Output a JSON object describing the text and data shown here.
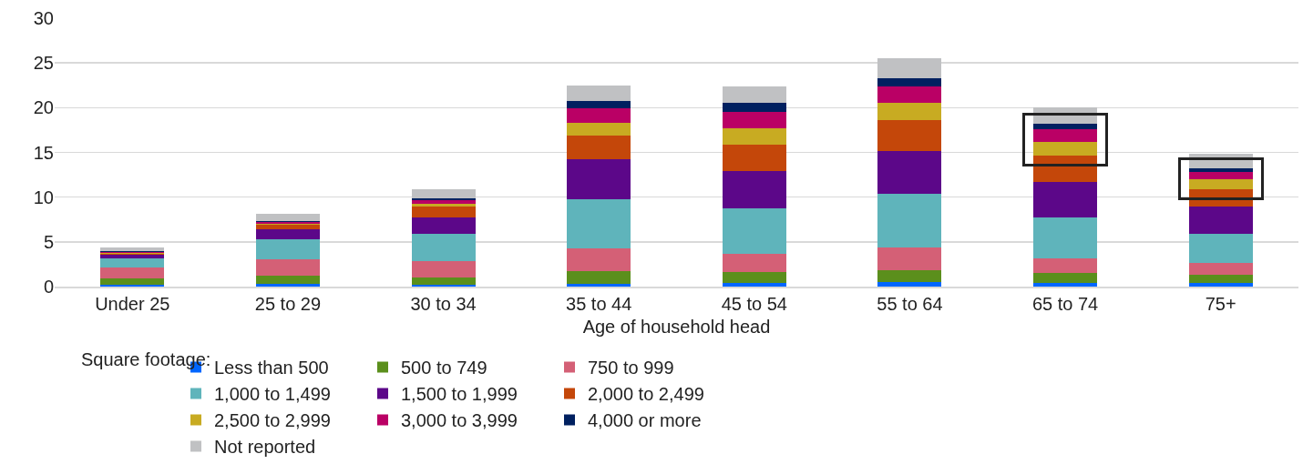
{
  "chart_data": {
    "type": "bar",
    "stacked": true,
    "xlabel": "Age of household head",
    "legend_title": "Square footage:",
    "legend": "bottom",
    "grid": "y",
    "categories": [
      "Under 25",
      "25 to 29",
      "30 to 34",
      "35 to 44",
      "45 to 54",
      "55 to 64",
      "65 to 74",
      "75+"
    ],
    "ylim": [
      0,
      30
    ],
    "yticks": [
      0,
      5,
      10,
      15,
      20,
      25,
      30
    ],
    "series": [
      {
        "name": "Less than 500",
        "color": "#0066ff",
        "values": [
          0.2,
          0.3,
          0.2,
          0.3,
          0.4,
          0.5,
          0.4,
          0.4
        ]
      },
      {
        "name": "500 to 749",
        "color": "#5b8f1c",
        "values": [
          0.7,
          0.9,
          0.8,
          1.4,
          1.2,
          1.3,
          1.1,
          0.9
        ]
      },
      {
        "name": "750 to 999",
        "color": "#d46076",
        "values": [
          1.2,
          1.9,
          1.8,
          2.6,
          2.1,
          2.6,
          1.7,
          1.3
        ]
      },
      {
        "name": "1,000 to 1,499",
        "color": "#5fb4bb",
        "values": [
          1.1,
          2.2,
          3.1,
          5.5,
          5.0,
          6.0,
          4.5,
          3.3
        ]
      },
      {
        "name": "1,500 to 1,999",
        "color": "#5c0789",
        "values": [
          0.4,
          1.1,
          1.8,
          4.4,
          4.2,
          4.8,
          4.0,
          3.1
        ]
      },
      {
        "name": "2,000 to 2,499",
        "color": "#c4470a",
        "values": [
          0.1,
          0.5,
          1.2,
          2.7,
          3.0,
          3.4,
          2.9,
          1.9
        ]
      },
      {
        "name": "2,500 to 2,999",
        "color": "#c8ab22",
        "values": [
          0.1,
          0.1,
          0.4,
          1.4,
          1.8,
          1.9,
          1.6,
          1.1
        ]
      },
      {
        "name": "3,000 to 3,999",
        "color": "#ba0065",
        "values": [
          0.1,
          0.2,
          0.4,
          1.6,
          1.8,
          1.9,
          1.4,
          0.8
        ]
      },
      {
        "name": "4,000 or more",
        "color": "#002060",
        "values": [
          0.1,
          0.1,
          0.2,
          0.8,
          1.0,
          0.9,
          0.6,
          0.4
        ]
      },
      {
        "name": "Not reported",
        "color": "#c0c1c3",
        "values": [
          0.4,
          0.8,
          1.0,
          1.8,
          1.9,
          2.2,
          1.8,
          1.6
        ]
      }
    ]
  }
}
